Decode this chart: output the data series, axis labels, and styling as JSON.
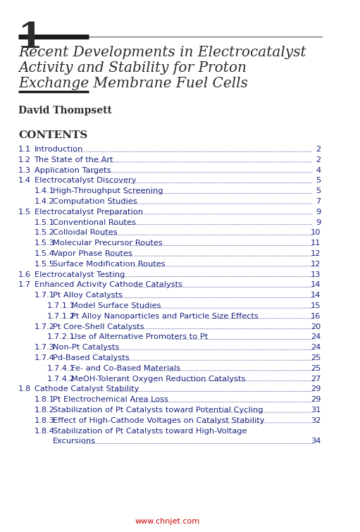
{
  "bg_color": "#ffffff",
  "chapter_number": "1",
  "title_lines": [
    "Recent Developments in Electrocatalyst",
    "Activity and Stability for Proton",
    "Exchange Membrane Fuel Cells"
  ],
  "author": "David Thompsett",
  "contents_label": "CONTENTS",
  "toc_entries": [
    {
      "level": 1,
      "number": "1.1",
      "text": "Introduction",
      "page": "2"
    },
    {
      "level": 1,
      "number": "1.2",
      "text": "The State of the Art",
      "page": "2"
    },
    {
      "level": 1,
      "number": "1.3",
      "text": "Application Targets",
      "page": "4"
    },
    {
      "level": 1,
      "number": "1.4",
      "text": "Electrocatalyst Discovery",
      "page": "5"
    },
    {
      "level": 2,
      "number": "1.4.1",
      "text": "High-Throughput Screening",
      "page": "5"
    },
    {
      "level": 2,
      "number": "1.4.2",
      "text": "Computation Studies",
      "page": "7"
    },
    {
      "level": 1,
      "number": "1.5",
      "text": "Electrocatalyst Preparation",
      "page": "9"
    },
    {
      "level": 2,
      "number": "1.5.1",
      "text": "Conventional Routes",
      "page": "9"
    },
    {
      "level": 2,
      "number": "1.5.2",
      "text": "Colloidal Routes",
      "page": "10"
    },
    {
      "level": 2,
      "number": "1.5.3",
      "text": "Molecular Precursor Routes",
      "page": "11"
    },
    {
      "level": 2,
      "number": "1.5.4",
      "text": "Vapor Phase Routes",
      "page": "12"
    },
    {
      "level": 2,
      "number": "1.5.5",
      "text": "Surface Modification Routes",
      "page": "12"
    },
    {
      "level": 1,
      "number": "1.6",
      "text": "Electrocatalyst Testing",
      "page": "13"
    },
    {
      "level": 1,
      "number": "1.7",
      "text": "Enhanced Activity Cathode Catalysts",
      "page": "14"
    },
    {
      "level": 2,
      "number": "1.7.1",
      "text": "Pt Alloy Catalysts",
      "page": "14"
    },
    {
      "level": 3,
      "number": "1.7.1.1",
      "text": "Model Surface Studies",
      "page": "15"
    },
    {
      "level": 3,
      "number": "1.7.1.2",
      "text": "Pt Alloy Nanoparticles and Particle Size Effects",
      "page": "16"
    },
    {
      "level": 2,
      "number": "1.7.2",
      "text": "Pt Core-Shell Catalysts",
      "page": "20"
    },
    {
      "level": 3,
      "number": "1.7.2.1",
      "text": "Use of Alternative Promoters to Pt",
      "page": "24"
    },
    {
      "level": 2,
      "number": "1.7.3",
      "text": "Non-Pt Catalysts",
      "page": "24"
    },
    {
      "level": 2,
      "number": "1.7.4",
      "text": "Pd-Based Catalysts",
      "page": "25"
    },
    {
      "level": 3,
      "number": "1.7.4.1",
      "text": "Fe- and Co-Based Materials",
      "page": "25"
    },
    {
      "level": 3,
      "number": "1.7.4.2",
      "text": "MeOH-Tolerant Oxygen Reduction Catalysts",
      "page": "27"
    },
    {
      "level": 1,
      "number": "1.8",
      "text": "Cathode Catalyst Stability",
      "page": "29"
    },
    {
      "level": 2,
      "number": "1.8.1",
      "text": "Pt Electrochemical Area Loss",
      "page": "29"
    },
    {
      "level": 2,
      "number": "1.8.2",
      "text": "Stabilization of Pt Catalysts toward Potential Cycling",
      "page": "31"
    },
    {
      "level": 2,
      "number": "1.8.3",
      "text": "Effect of High-Cathode Voltages on Catalyst Stability",
      "page": "32"
    },
    {
      "level": 2,
      "number": "1.8.4",
      "text": "Stabilization of Pt Catalysts toward High-Voltage\nExcursions",
      "page": "34"
    }
  ],
  "watermark": "www.chnjet.com",
  "watermark_color": "#cc0000",
  "text_color": "#1a237e",
  "black_color": "#1a1a1a",
  "dark_color": "#2c2c2c"
}
